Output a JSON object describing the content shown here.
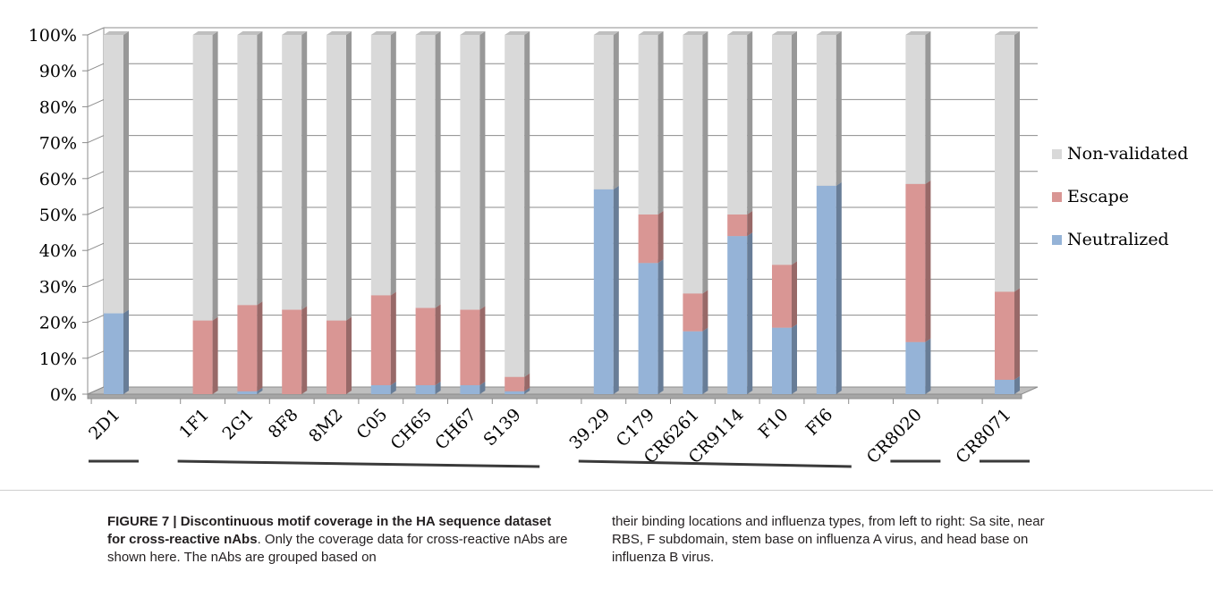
{
  "chart_data": {
    "type": "bar",
    "stacked": true,
    "three_d": true,
    "categories": [
      "2D1",
      "",
      "1F1",
      "2G1",
      "8F8",
      "8M2",
      "C05",
      "CH65",
      "CH67",
      "S139",
      "",
      "39.29",
      "C179",
      "CR6261",
      "CR9114",
      "F10",
      "FI6",
      "",
      "CR8020",
      "",
      "CR8071"
    ],
    "series": [
      {
        "name": "Neutralized",
        "color": "#95b3d7",
        "values": [
          22.5,
          null,
          0,
          0.8,
          0,
          0,
          2.5,
          2.5,
          2.5,
          0.8,
          null,
          57,
          36.5,
          17.5,
          44,
          18.5,
          58,
          null,
          14.5,
          null,
          4
        ]
      },
      {
        "name": "Escape",
        "color": "#d99694",
        "values": [
          0,
          null,
          20.5,
          24,
          23.5,
          20.5,
          25,
          21.5,
          21,
          4,
          null,
          0,
          13.5,
          10.5,
          6,
          17.5,
          0,
          null,
          44,
          null,
          24.5
        ]
      },
      {
        "name": "Non-validated",
        "color": "#d9d9d9",
        "values": [
          77.5,
          null,
          79.5,
          75.2,
          76.5,
          79.5,
          72.5,
          76,
          76.5,
          95.2,
          null,
          43,
          50,
          72,
          50,
          64,
          42,
          null,
          41.5,
          null,
          71.5
        ]
      }
    ],
    "y_ticks": [
      "0%",
      "10%",
      "20%",
      "30%",
      "40%",
      "50%",
      "60%",
      "70%",
      "80%",
      "90%",
      "100%"
    ],
    "ylim": [
      0,
      100
    ],
    "legend_position": "right",
    "legend": [
      "Non-validated",
      "Escape",
      "Neutralized"
    ],
    "grid": true,
    "group_underlines": [
      {
        "from": "2D1",
        "to": "2D1"
      },
      {
        "from": "1F1",
        "to": "S139"
      },
      {
        "from": "39.29",
        "to": "FI6"
      },
      {
        "from": "CR8020",
        "to": "CR8020"
      },
      {
        "from": "CR8071",
        "to": "CR8071"
      }
    ]
  },
  "caption": {
    "label": "FIGURE 7 | Discontinuous motif coverage in the HA sequence dataset for cross-reactive nAbs",
    "text_left": ". Only the coverage data for cross-reactive nAbs are shown here. The nAbs are grouped based on",
    "text_right": "their binding locations and influenza types, from left to right: Sa site, near RBS, F subdomain, stem base on influenza A virus, and head base on influenza B virus."
  }
}
